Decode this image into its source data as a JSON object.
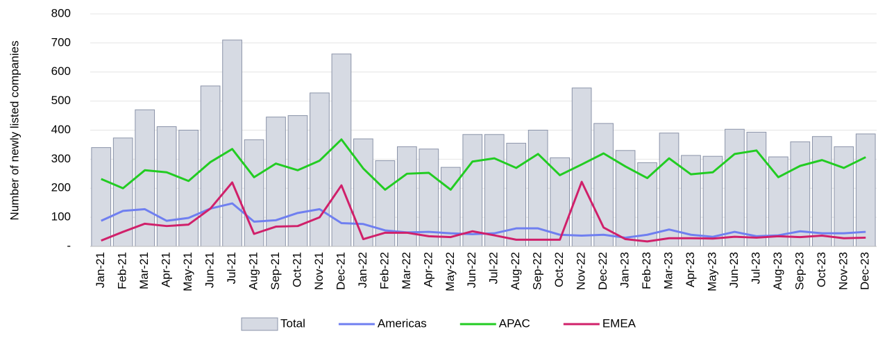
{
  "chart_data": {
    "type": "bar",
    "y_label": "Number of newly listed companies",
    "categories": [
      "Jan-21",
      "Feb-21",
      "Mar-21",
      "Apr-21",
      "May-21",
      "Jun-21",
      "Jul-21",
      "Aug-21",
      "Sep-21",
      "Oct-21",
      "Nov-21",
      "Dec-21",
      "Jan-22",
      "Feb-22",
      "Mar-22",
      "Apr-22",
      "May-22",
      "Jun-22",
      "Jul-22",
      "Aug-22",
      "Sep-22",
      "Oct-22",
      "Nov-22",
      "Dec-22",
      "Jan-23",
      "Feb-23",
      "Mar-23",
      "Apr-23",
      "May-23",
      "Jun-23",
      "Jul-23",
      "Aug-23",
      "Sep-23",
      "Oct-23",
      "Nov-23",
      "Dec-23"
    ],
    "series": [
      {
        "name": "Total",
        "type": "bar",
        "color": "#d6dae3",
        "values": [
          340,
          373,
          470,
          412,
          400,
          552,
          710,
          367,
          445,
          450,
          528,
          662,
          370,
          295,
          343,
          335,
          272,
          385,
          385,
          355,
          400,
          305,
          545,
          423,
          330,
          288,
          390,
          313,
          310,
          403,
          393,
          308,
          360,
          378,
          343,
          387
        ]
      },
      {
        "name": "Americas",
        "type": "line",
        "color": "#6f7ff0",
        "values": [
          88,
          122,
          128,
          88,
          98,
          130,
          148,
          85,
          90,
          115,
          128,
          80,
          77,
          55,
          48,
          50,
          45,
          42,
          45,
          62,
          62,
          40,
          37,
          40,
          30,
          40,
          58,
          40,
          33,
          50,
          35,
          38,
          52,
          45,
          45,
          50
        ]
      },
      {
        "name": "APAC",
        "type": "line",
        "color": "#22cc22",
        "values": [
          232,
          200,
          262,
          255,
          225,
          290,
          335,
          238,
          285,
          262,
          295,
          368,
          268,
          195,
          250,
          253,
          195,
          292,
          303,
          270,
          318,
          245,
          282,
          320,
          275,
          235,
          303,
          248,
          255,
          318,
          330,
          238,
          277,
          297,
          270,
          307
        ]
      },
      {
        "name": "EMEA",
        "type": "line",
        "color": "#d0206a",
        "values": [
          20,
          50,
          78,
          70,
          75,
          130,
          220,
          43,
          68,
          70,
          100,
          210,
          25,
          47,
          47,
          35,
          32,
          52,
          38,
          23,
          23,
          23,
          222,
          65,
          25,
          17,
          28,
          28,
          27,
          33,
          30,
          35,
          32,
          37,
          28,
          30
        ]
      }
    ],
    "ylim": [
      0,
      800
    ],
    "yticks": [
      {
        "value": 0,
        "label": "-"
      },
      100,
      200,
      300,
      400,
      500,
      600,
      700,
      800
    ],
    "grid": true,
    "legend": "bottom"
  }
}
